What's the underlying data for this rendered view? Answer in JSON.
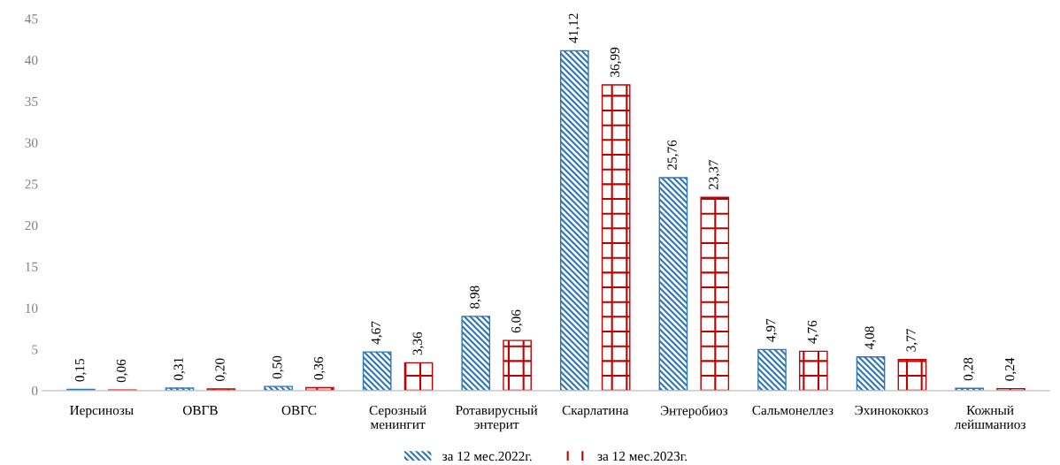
{
  "chart_data": {
    "type": "bar",
    "categories": [
      "Иерсинозы",
      "ОВГВ",
      "ОВГС",
      "Серозный\nменингит",
      "Ротавирусный\nэнтерит",
      "Скарлатина",
      "Энтеробиоз",
      "Сальмонеллез",
      "Эхинококкоз",
      "Кожный\nлейшманиоз"
    ],
    "series": [
      {
        "name": "за 12 мес.2022г.",
        "color": "#2e75b6",
        "values": [
          0.15,
          0.31,
          0.5,
          4.67,
          8.98,
          41.12,
          25.76,
          4.97,
          4.08,
          0.28
        ],
        "value_labels": [
          "0,15",
          "0,31",
          "0,50",
          "4,67",
          "8,98",
          "41,12",
          "25,76",
          "4,97",
          "4,08",
          "0,28"
        ]
      },
      {
        "name": "за 12 мес.2023г.",
        "color": "#c00000",
        "values": [
          0.06,
          0.2,
          0.36,
          3.36,
          6.06,
          36.99,
          23.37,
          4.76,
          3.77,
          0.24
        ],
        "value_labels": [
          "0,06",
          "0,20",
          "0,36",
          "3,36",
          "6,06",
          "36,99",
          "23,37",
          "4,76",
          "3,77",
          "0,24"
        ]
      }
    ],
    "ylim": [
      0,
      45
    ],
    "yticks": [
      0,
      5,
      10,
      15,
      20,
      25,
      30,
      35,
      40,
      45
    ],
    "grid": false,
    "legend": "bottom"
  }
}
